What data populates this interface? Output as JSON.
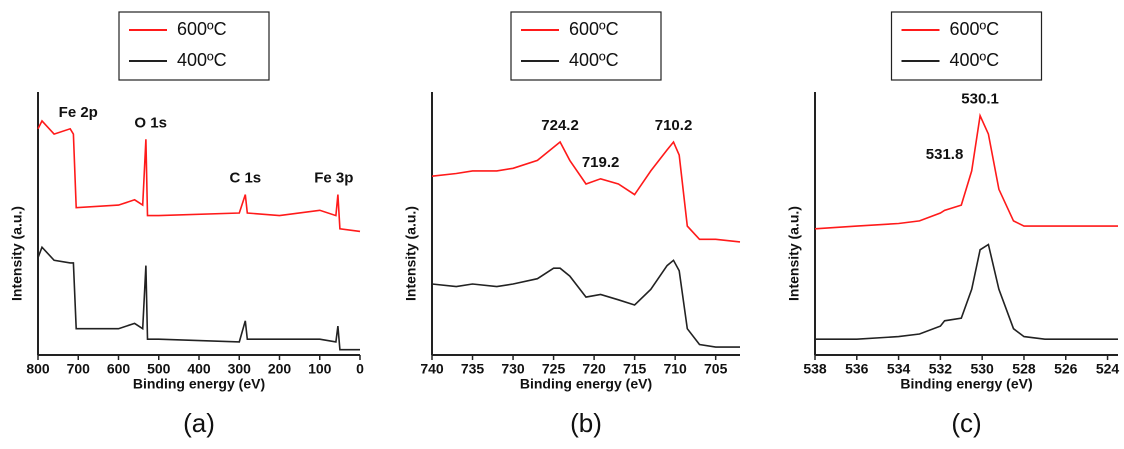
{
  "chart_data": [
    {
      "type": "line",
      "label": "(a)",
      "xlabel": "Binding energy (eV)",
      "ylabel": "Intensity (a.u.)",
      "xlim": [
        800,
        0
      ],
      "xticks": [
        800,
        700,
        600,
        500,
        400,
        300,
        200,
        100,
        0
      ],
      "ylim": [
        0,
        100
      ],
      "x": [
        800,
        790,
        760,
        720,
        712,
        705,
        600,
        560,
        540,
        532,
        528,
        500,
        300,
        285,
        280,
        200,
        100,
        60,
        55,
        50,
        0
      ],
      "series": [
        {
          "name": "600ºC",
          "color": "#ff1a1a",
          "values": [
            86,
            89,
            84,
            86,
            84,
            56,
            57,
            59,
            57,
            82,
            53,
            53,
            54,
            61,
            54,
            53,
            55,
            53,
            61,
            48,
            47
          ]
        },
        {
          "name": "400ºC",
          "color": "#222222",
          "values": [
            37,
            41,
            36,
            35,
            35,
            10,
            10,
            12,
            10,
            34,
            6,
            6,
            5,
            13,
            6,
            6,
            6,
            5,
            11,
            2,
            2
          ]
        }
      ],
      "annotations": [
        {
          "text": "Fe 2p",
          "x": 700
        },
        {
          "text": "O 1s",
          "x": 520
        },
        {
          "text": "C 1s",
          "x": 285
        },
        {
          "text": "Fe 3p",
          "x": 65
        }
      ]
    },
    {
      "type": "line",
      "label": "(b)",
      "xlabel": "Binding energy (eV)",
      "ylabel": "Intensity (a.u.)",
      "xlim": [
        740,
        702
      ],
      "xticks": [
        740,
        735,
        730,
        725,
        720,
        715,
        710,
        705
      ],
      "ylim": [
        0,
        100
      ],
      "x": [
        740,
        737,
        735,
        732,
        730,
        727,
        725,
        724.2,
        723,
        721,
        719.2,
        717,
        715,
        713,
        711,
        710.2,
        709.5,
        708.5,
        707,
        705,
        702
      ],
      "series": [
        {
          "name": "600ºC",
          "color": "#ff1a1a",
          "values": [
            68,
            69,
            70,
            70,
            71,
            74,
            79,
            81,
            74,
            65,
            67,
            65,
            61,
            70,
            78,
            81,
            76,
            49,
            44,
            44,
            43
          ]
        },
        {
          "name": "400ºC",
          "color": "#222222",
          "values": [
            27,
            26,
            27,
            26,
            27,
            29,
            33,
            33,
            30,
            22,
            23,
            21,
            19,
            25,
            34,
            36,
            32,
            10,
            4,
            3,
            3
          ]
        }
      ],
      "annotations": [
        {
          "text": "724.2",
          "x": 724.2
        },
        {
          "text": "719.2",
          "x": 719.2
        },
        {
          "text": "710.2",
          "x": 710.2
        }
      ]
    },
    {
      "type": "line",
      "label": "(c)",
      "xlabel": "Binding energy (eV)",
      "ylabel": "Intensity (a.u.)",
      "xlim": [
        538,
        523.5
      ],
      "xticks": [
        538,
        536,
        534,
        532,
        530,
        528,
        526,
        524
      ],
      "ylim": [
        0,
        100
      ],
      "x": [
        538,
        536,
        534,
        533,
        532,
        531.8,
        531,
        530.5,
        530.1,
        529.7,
        529.2,
        528.5,
        528,
        527,
        526,
        524,
        523.5
      ],
      "series": [
        {
          "name": "600ºC",
          "color": "#ff1a1a",
          "values": [
            48,
            49,
            50,
            51,
            54,
            55,
            57,
            70,
            91,
            84,
            63,
            51,
            49,
            49,
            49,
            49,
            49
          ]
        },
        {
          "name": "400ºC",
          "color": "#222222",
          "values": [
            6,
            6,
            7,
            8,
            11,
            13,
            14,
            25,
            40,
            42,
            25,
            10,
            7,
            6,
            6,
            6,
            6
          ]
        }
      ],
      "annotations": [
        {
          "text": "531.8",
          "x": 531.8
        },
        {
          "text": "530.1",
          "x": 530.1
        }
      ]
    }
  ]
}
